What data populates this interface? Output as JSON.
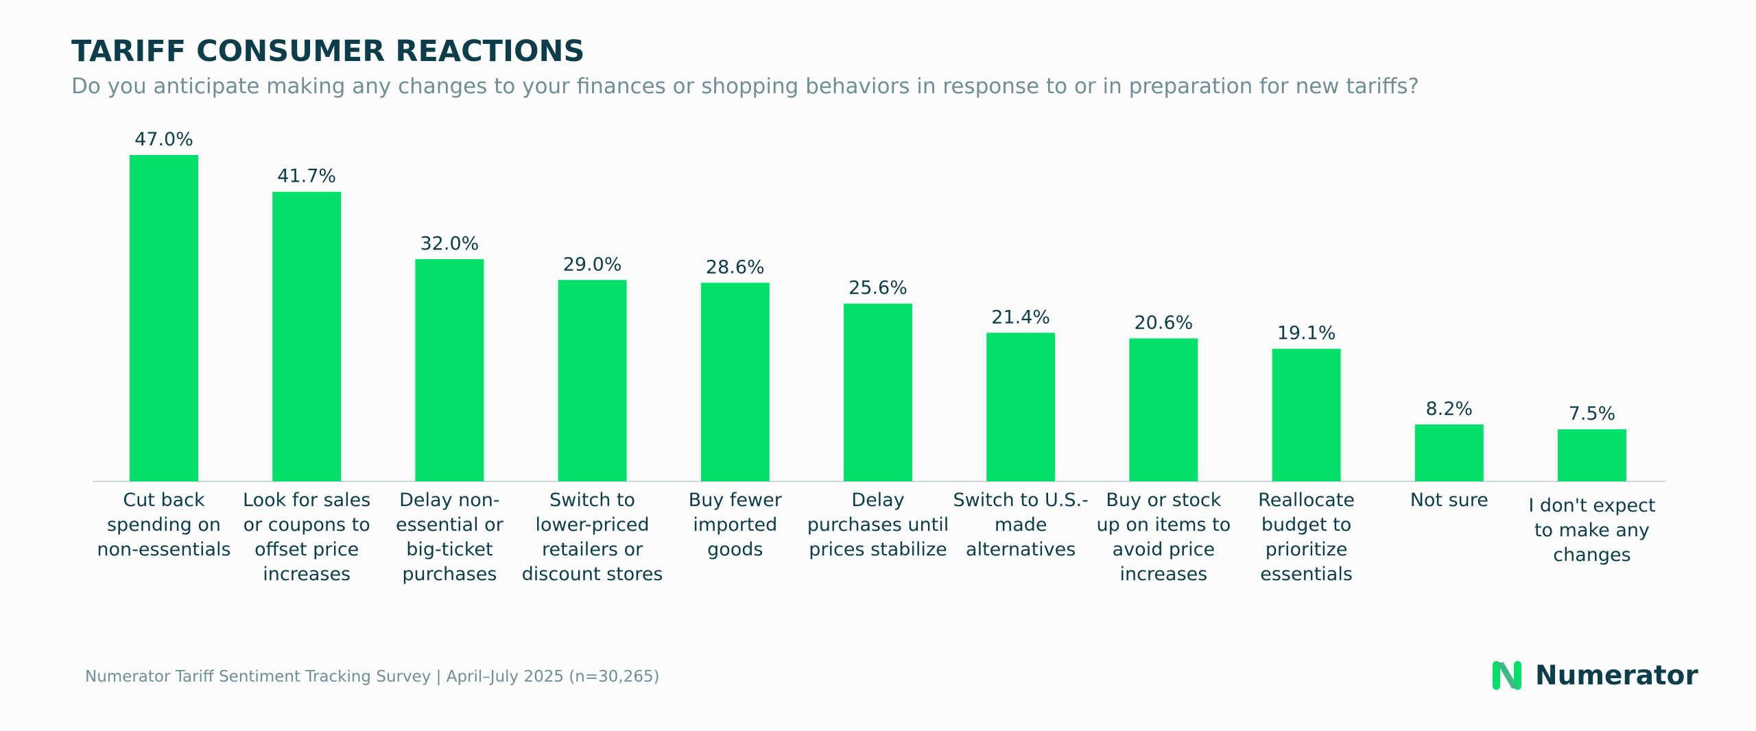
{
  "title": "TARIFF CONSUMER REACTIONS",
  "subtitle": "Do you anticipate making any changes to your finances or shopping behaviors in response to or in preparation for new tariffs?",
  "source": "Numerator Tariff Sentiment Tracking Survey | April–July 2025 (n=30,265)",
  "brand": {
    "name": "Numerator",
    "icon": "numerator-n-logo-icon"
  },
  "colors": {
    "bar": "#04e06a",
    "text": "#0b3d4a",
    "muted": "#6e8f96",
    "axis": "#cfd8da"
  },
  "chart_data": {
    "type": "bar",
    "categories": [
      [
        "Cut back",
        "spending on",
        "non-essentials"
      ],
      [
        "Look for sales",
        "or coupons to",
        "offset price",
        "increases"
      ],
      [
        "Delay non-",
        "essential or",
        "big-ticket",
        "purchases"
      ],
      [
        "Switch to",
        "lower-priced",
        "retailers or",
        "discount stores"
      ],
      [
        "Buy fewer",
        "imported",
        "goods"
      ],
      [
        "Delay",
        "purchases until",
        "prices stabilize"
      ],
      [
        "Switch to U.S.-",
        "made",
        "alternatives"
      ],
      [
        "Buy or stock",
        "up on items to",
        "avoid price",
        "increases"
      ],
      [
        "Reallocate",
        "budget to",
        "prioritize",
        "essentials"
      ],
      [
        "Not sure"
      ],
      [
        "I don't expect",
        "to make any",
        "changes"
      ]
    ],
    "values": [
      47.0,
      41.7,
      32.0,
      29.0,
      28.6,
      25.6,
      21.4,
      20.6,
      19.1,
      8.2,
      7.5
    ],
    "value_labels": [
      "47.0%",
      "41.7%",
      "32.0%",
      "29.0%",
      "28.6%",
      "25.6%",
      "21.4%",
      "20.6%",
      "19.1%",
      "8.2%",
      "7.5%"
    ],
    "ylim": [
      0,
      47.0
    ],
    "grid": false,
    "legend": "none"
  }
}
